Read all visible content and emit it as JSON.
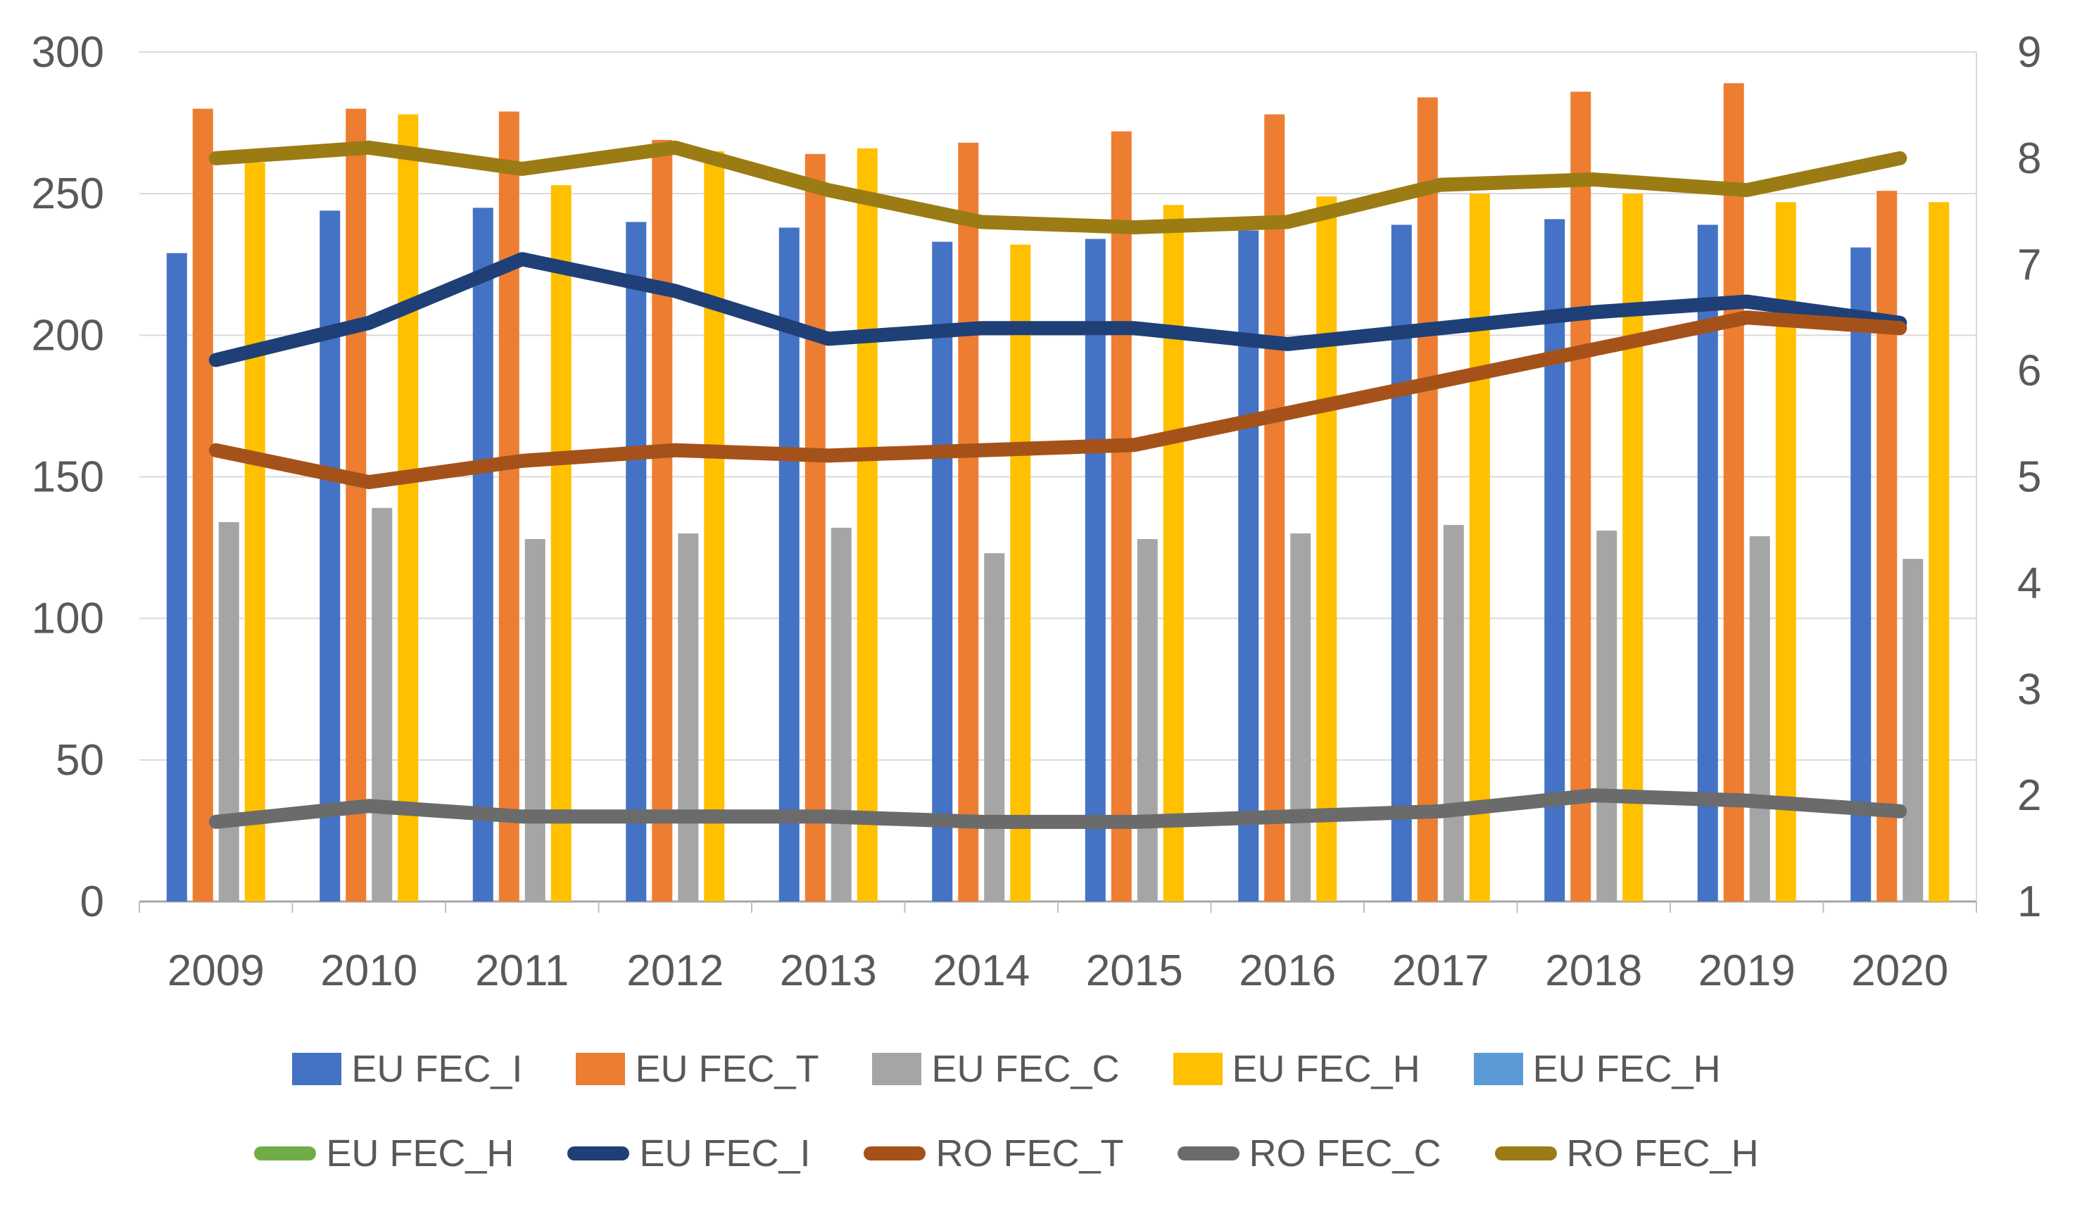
{
  "chart_data": {
    "type": "combo",
    "title": "",
    "categories": [
      "2009",
      "2010",
      "2011",
      "2012",
      "2013",
      "2014",
      "2015",
      "2016",
      "2017",
      "2018",
      "2019",
      "2020"
    ],
    "left_axis": {
      "ticks": [
        300,
        250,
        200,
        150,
        100,
        50,
        0
      ],
      "min": 0,
      "max": 300,
      "gridlines": true
    },
    "right_axis": {
      "ticks": [
        9,
        8,
        7,
        6,
        5,
        4,
        3,
        2,
        1
      ],
      "min": 1,
      "max": 9
    },
    "legend_position": "bottom",
    "series": [
      {
        "name": "EU FEC_I",
        "type": "bar",
        "axis": "left",
        "color": "#4472C4",
        "values": [
          229,
          244,
          245,
          240,
          238,
          233,
          234,
          237,
          239,
          241,
          239,
          231
        ]
      },
      {
        "name": "EU FEC_T",
        "type": "bar",
        "axis": "left",
        "color": "#ED7D31",
        "values": [
          280,
          280,
          279,
          269,
          264,
          268,
          272,
          278,
          284,
          286,
          289,
          251
        ]
      },
      {
        "name": "EU FEC_C",
        "type": "bar",
        "axis": "left",
        "color": "#A5A5A5",
        "values": [
          134,
          139,
          128,
          130,
          132,
          123,
          128,
          130,
          133,
          131,
          129,
          121
        ]
      },
      {
        "name": "EU FEC_H",
        "type": "bar",
        "axis": "left",
        "color": "#FFC000",
        "values": [
          261,
          278,
          253,
          265,
          266,
          232,
          246,
          249,
          250,
          250,
          247,
          247
        ]
      },
      {
        "name": "EU FEC_H",
        "type": "bar",
        "axis": "left",
        "color": "#5B9BD5",
        "values": null
      },
      {
        "name": "EU FEC_H",
        "type": "line",
        "axis": "right",
        "color": "#70AD47",
        "values": null
      },
      {
        "name": "EU FEC_I",
        "type": "line",
        "axis": "right",
        "color": "#1F3F77",
        "values": [
          6.1,
          6.45,
          7.05,
          6.75,
          6.3,
          6.4,
          6.4,
          6.25,
          6.4,
          6.55,
          6.65,
          6.45
        ]
      },
      {
        "name": "RO FEC_T",
        "type": "line",
        "axis": "right",
        "color": "#A5521A",
        "values": [
          5.25,
          4.95,
          5.15,
          5.25,
          5.2,
          5.25,
          5.3,
          5.6,
          5.9,
          6.2,
          6.5,
          6.4
        ]
      },
      {
        "name": "RO FEC_C",
        "type": "line",
        "axis": "right",
        "color": "#6B6B6B",
        "values": [
          1.75,
          1.9,
          1.8,
          1.8,
          1.8,
          1.75,
          1.75,
          1.8,
          1.85,
          2.0,
          1.95,
          1.85
        ]
      },
      {
        "name": "RO FEC_H",
        "type": "line",
        "axis": "right",
        "color": "#9B7C14",
        "values": [
          8.0,
          8.1,
          7.9,
          8.1,
          7.7,
          7.4,
          7.35,
          7.4,
          7.75,
          7.8,
          7.7,
          8.0
        ]
      }
    ],
    "legend_rows": [
      [
        0,
        1,
        2,
        3,
        4
      ],
      [
        5,
        6,
        7,
        8,
        9
      ]
    ]
  }
}
